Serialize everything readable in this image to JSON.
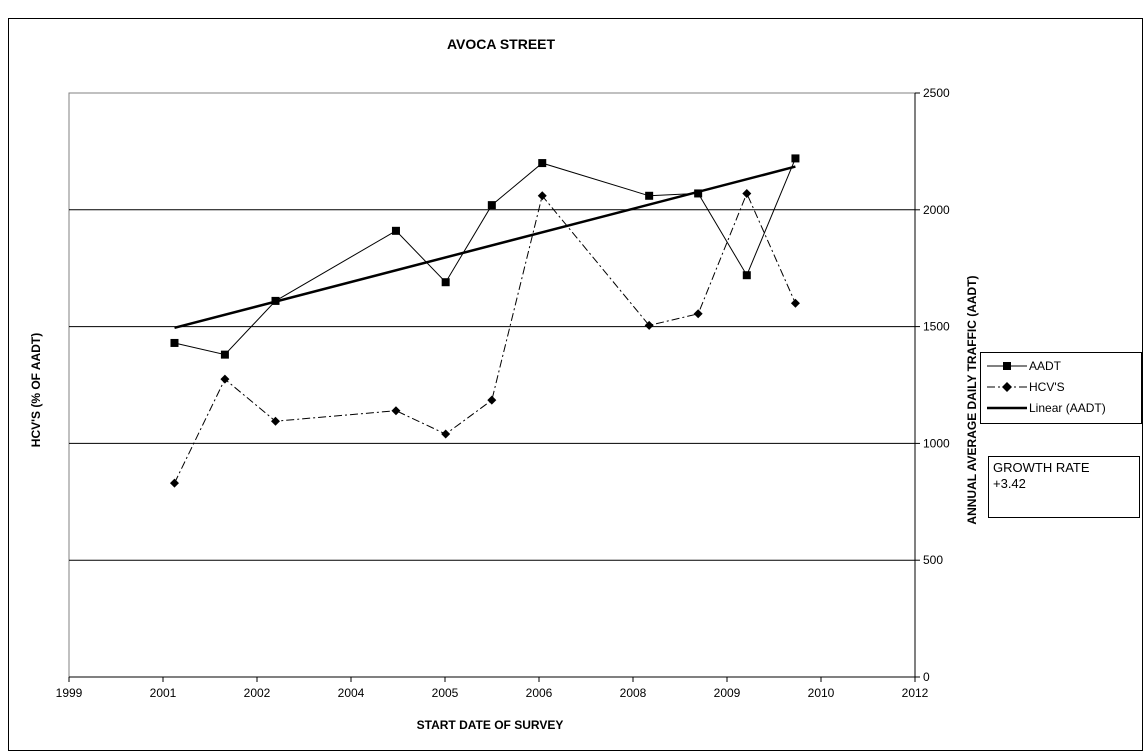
{
  "colors": {
    "line": "#000000",
    "gridline": "#000000",
    "background": "#ffffff"
  },
  "legend": {
    "aadt_label": "AADT",
    "hcv_label": "HCV'S",
    "linear_label": "Linear (AADT)"
  },
  "growth_box": {
    "line1": "GROWTH RATE",
    "line2": "+3.42"
  },
  "chart_data": {
    "type": "line",
    "title": "AVOCA STREET",
    "xlabel": "START DATE OF SURVEY",
    "ylabel": "HCV'S (% OF AADT)",
    "ylabel_right": "ANNUAL AVERAGE DAILY TRAFFIC (AADT)",
    "x_ticks": [
      "1999",
      "2001",
      "2002",
      "2004",
      "2005",
      "2006",
      "2008",
      "2009",
      "2010",
      "2012"
    ],
    "x_domain": [
      "1999-01-01",
      "2012-01-01"
    ],
    "y_right_ticks": [
      0,
      500,
      1000,
      1500,
      2000,
      2500
    ],
    "ylim_right": [
      0,
      2500
    ],
    "grid": "horizontal",
    "legend_position": "right",
    "series": [
      {
        "name": "AADT",
        "marker": "square",
        "style": "solid",
        "points": [
          {
            "x": "2000-08-15",
            "y": 1430
          },
          {
            "x": "2001-05-25",
            "y": 1380
          },
          {
            "x": "2002-03-05",
            "y": 1610
          },
          {
            "x": "2004-01-10",
            "y": 1910
          },
          {
            "x": "2004-10-15",
            "y": 1690
          },
          {
            "x": "2005-07-01",
            "y": 2020
          },
          {
            "x": "2006-04-10",
            "y": 2200
          },
          {
            "x": "2007-12-01",
            "y": 2060
          },
          {
            "x": "2008-09-01",
            "y": 2070
          },
          {
            "x": "2009-06-01",
            "y": 1720
          },
          {
            "x": "2010-03-01",
            "y": 2220
          }
        ]
      },
      {
        "name": "HCV'S",
        "marker": "diamond",
        "style": "dash-dot",
        "points": [
          {
            "x": "2000-08-15",
            "y": 830
          },
          {
            "x": "2001-05-25",
            "y": 1275
          },
          {
            "x": "2002-03-05",
            "y": 1095
          },
          {
            "x": "2004-01-10",
            "y": 1140
          },
          {
            "x": "2004-10-15",
            "y": 1040
          },
          {
            "x": "2005-07-01",
            "y": 1185
          },
          {
            "x": "2006-04-10",
            "y": 2060
          },
          {
            "x": "2007-12-01",
            "y": 1505
          },
          {
            "x": "2008-09-01",
            "y": 1555
          },
          {
            "x": "2009-06-01",
            "y": 2070
          },
          {
            "x": "2010-03-01",
            "y": 1600
          }
        ]
      },
      {
        "name": "Linear (AADT)",
        "marker": "none",
        "style": "solid-thick",
        "points": [
          {
            "x": "2000-08-15",
            "y": 1495
          },
          {
            "x": "2010-03-01",
            "y": 2185
          }
        ]
      }
    ]
  }
}
